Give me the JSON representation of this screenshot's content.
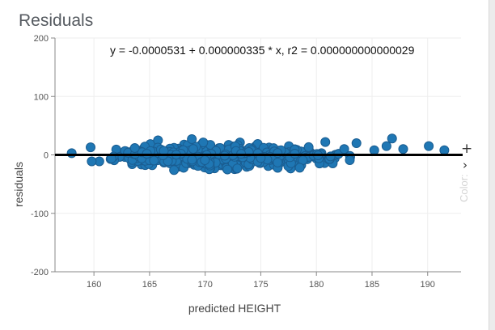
{
  "panel": {
    "title": "Residuals"
  },
  "side_controls": {
    "add_glyph": "+",
    "next_glyph": "›",
    "color_label": "Color:"
  },
  "chart_data": {
    "type": "scatter",
    "title": "",
    "annotation": "y = -0.0000531 + 0.000000335 * x,    r2 = 0.000000000000029",
    "xlabel": "predicted HEIGHT",
    "ylabel": "residuals",
    "xlim": [
      156.5,
      193
    ],
    "ylim": [
      -200,
      200
    ],
    "xticks": [
      160,
      165,
      170,
      175,
      180,
      185,
      190
    ],
    "yticks": [
      -200,
      -100,
      0,
      100,
      200
    ],
    "grid": true,
    "reference_line": {
      "y": 0
    },
    "point_color": "#1f77b4",
    "point_edge_color": "#1a5d91",
    "cluster": {
      "x_range": [
        159.5,
        183.5
      ],
      "y_spread": [
        -27,
        25
      ],
      "count": 620
    },
    "points": [
      {
        "x": 158.0,
        "y": 3
      },
      {
        "x": 159.7,
        "y": 13
      },
      {
        "x": 159.8,
        "y": -11
      },
      {
        "x": 182.5,
        "y": 10
      },
      {
        "x": 183.0,
        "y": -9
      },
      {
        "x": 183.6,
        "y": 20
      },
      {
        "x": 185.2,
        "y": 8
      },
      {
        "x": 186.3,
        "y": 15
      },
      {
        "x": 186.8,
        "y": 28
      },
      {
        "x": 187.8,
        "y": 10
      },
      {
        "x": 190.1,
        "y": 15
      },
      {
        "x": 191.5,
        "y": 8
      },
      {
        "x": 167.2,
        "y": -26
      },
      {
        "x": 178.5,
        "y": -22
      },
      {
        "x": 172.0,
        "y": -25
      },
      {
        "x": 168.8,
        "y": 27
      },
      {
        "x": 180.8,
        "y": 22
      }
    ]
  }
}
